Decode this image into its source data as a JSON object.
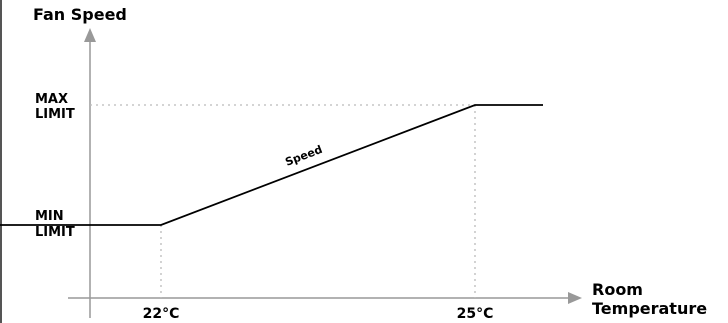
{
  "chart_data": {
    "type": "line",
    "ylabel": "Fan Speed",
    "xlabel_lines": [
      "Room",
      "Temperature"
    ],
    "y_ticks": [
      {
        "key": "min",
        "lines": [
          "MIN",
          "LIMIT"
        ]
      },
      {
        "key": "max",
        "lines": [
          "MAX",
          "LIMIT"
        ]
      }
    ],
    "x_ticks": [
      {
        "value": 22,
        "label": "22°C"
      },
      {
        "value": 25,
        "label": "25°C"
      }
    ],
    "series": [
      {
        "name": "Speed",
        "points": [
          {
            "x": 19.4,
            "y": "min"
          },
          {
            "x": 22,
            "y": "min"
          },
          {
            "x": 25,
            "y": "max"
          },
          {
            "x": 25.65,
            "y": "max"
          }
        ]
      }
    ],
    "guide_lines": "dotted",
    "colors": {
      "axis": "#999999",
      "line": "#000000",
      "guide": "#bbbbbb",
      "text": "#000000"
    }
  }
}
